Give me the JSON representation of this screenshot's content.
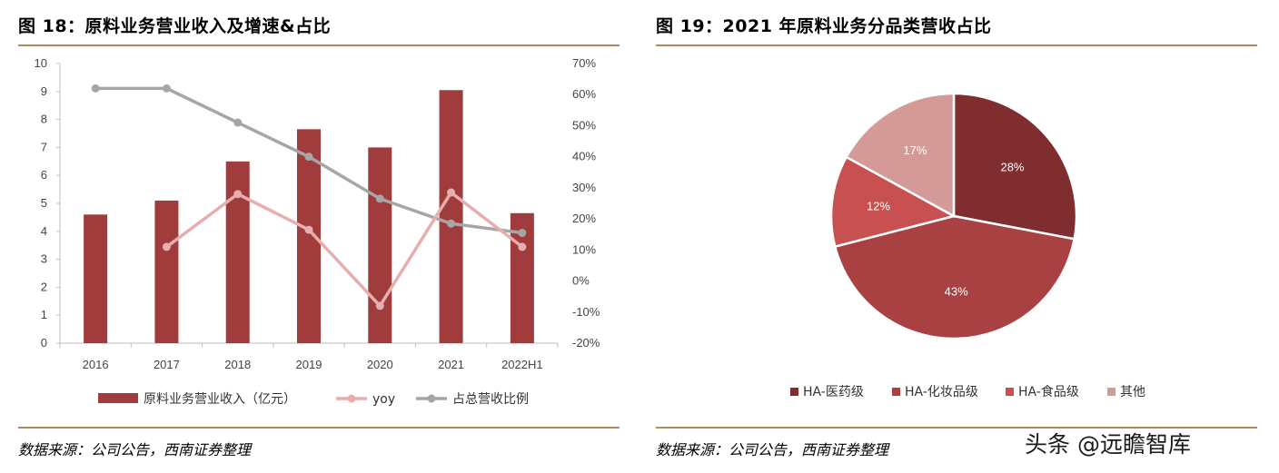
{
  "left": {
    "title": "图 18：原料业务营业收入及增速&占比",
    "source": "数据来源：公司公告，西南证券整理",
    "chart_data": {
      "type": "bar",
      "categories": [
        "2016",
        "2017",
        "2018",
        "2019",
        "2020",
        "2021",
        "2022H1"
      ],
      "series": [
        {
          "name": "原料业务营业收入（亿元）",
          "type": "bar",
          "axis": "left",
          "values": [
            4.6,
            5.1,
            6.5,
            7.65,
            7.0,
            9.05,
            4.65
          ],
          "color": "#a03c3c"
        },
        {
          "name": "yoy",
          "type": "line",
          "axis": "right",
          "values": [
            null,
            11,
            28,
            16.5,
            -8,
            28.5,
            11
          ],
          "color": "#e8aeae"
        },
        {
          "name": "占总营收比例",
          "type": "line",
          "axis": "right",
          "values": [
            62,
            62,
            51,
            40,
            26.5,
            18.5,
            15.5
          ],
          "color": "#a6a6a6"
        }
      ],
      "y_left": {
        "ylim": [
          0,
          10
        ],
        "ticks": [
          "0",
          "1",
          "2",
          "3",
          "4",
          "5",
          "6",
          "7",
          "8",
          "9",
          "10"
        ]
      },
      "y_right": {
        "ylim": [
          -20,
          70
        ],
        "ticks": [
          "-20%",
          "-10%",
          "0%",
          "10%",
          "20%",
          "30%",
          "40%",
          "50%",
          "60%",
          "70%"
        ]
      },
      "legend_position": "bottom"
    }
  },
  "right": {
    "title": "图 19：2021 年原料业务分品类营收占比",
    "source": "数据来源：公司公告，西南证券整理",
    "chart_data": {
      "type": "pie",
      "labels": [
        "HA-医药级",
        "HA-化妆品级",
        "HA-食品级",
        "其他"
      ],
      "values": [
        28,
        43,
        12,
        17
      ],
      "value_labels": [
        "28%",
        "43%",
        "12%",
        "17%"
      ],
      "colors": [
        "#7f2d2f",
        "#a94143",
        "#c85050",
        "#d49a98"
      ],
      "label_colors": [
        "#ffffff",
        "#ffffff",
        "#ffffff",
        "#ffffff"
      ],
      "legend_position": "bottom"
    }
  },
  "watermark": "头条 @远瞻智库"
}
